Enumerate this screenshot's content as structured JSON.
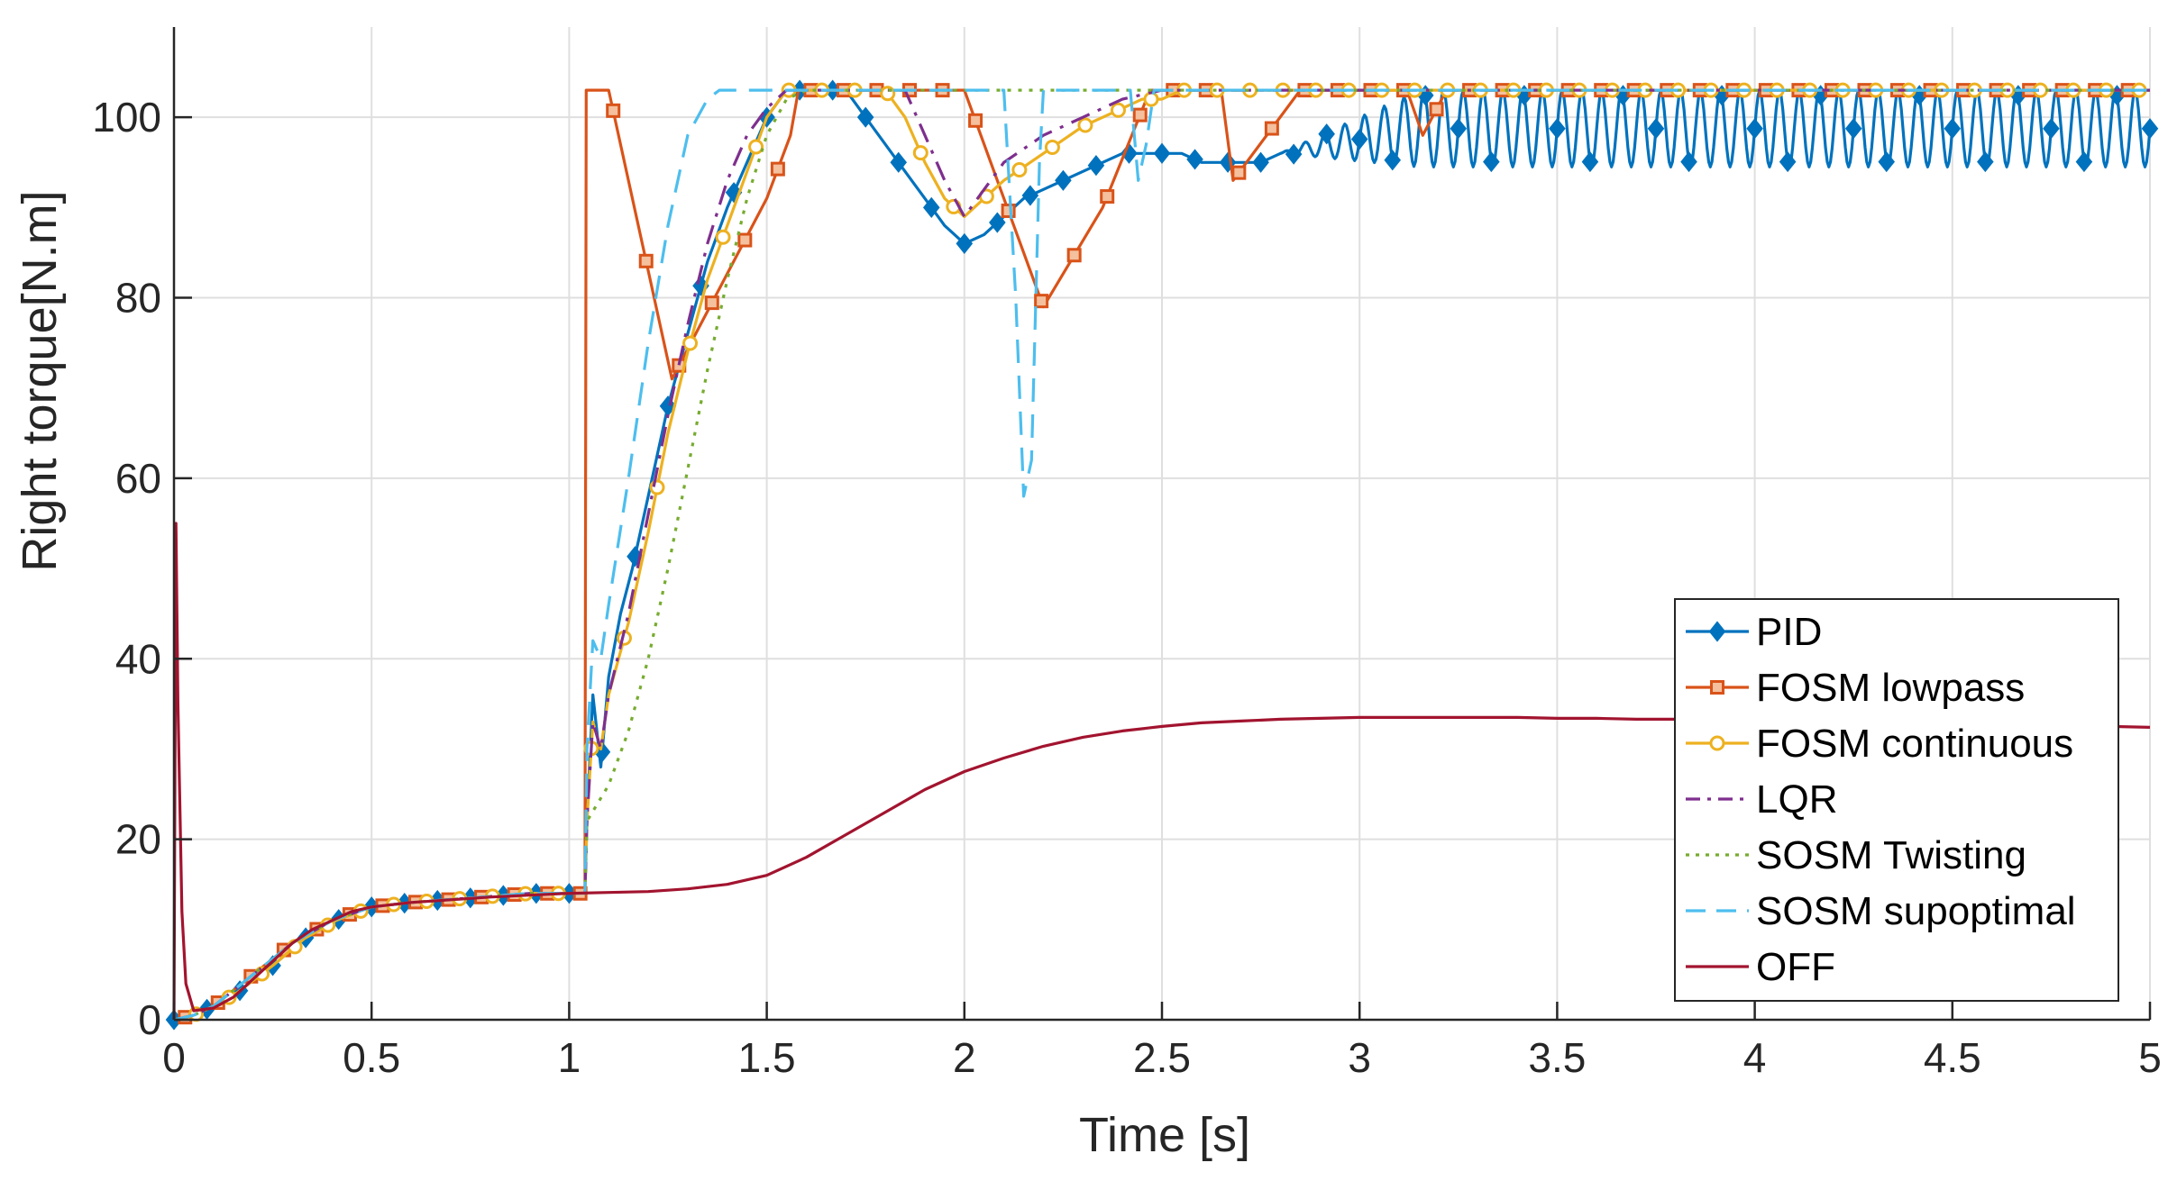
{
  "chart_data": {
    "type": "line",
    "title": "",
    "xlabel": "Time [s]",
    "ylabel": "Right torque[N.m]",
    "xlim": [
      0,
      5
    ],
    "ylim": [
      0,
      110
    ],
    "xticks": [
      0,
      0.5,
      1,
      1.5,
      2,
      2.5,
      3,
      3.5,
      4,
      4.5,
      5
    ],
    "xtick_labels": [
      "0",
      "0.5",
      "1",
      "1.5",
      "2",
      "2.5",
      "3",
      "3.5",
      "4",
      "4.5",
      "5"
    ],
    "yticks": [
      0,
      20,
      40,
      60,
      80,
      100
    ],
    "ytick_labels": [
      "0",
      "20",
      "40",
      "60",
      "80",
      "100"
    ],
    "grid": true,
    "legend_position": "lower-right",
    "series": [
      {
        "name": "PID",
        "color": "#0072BD",
        "dash": "solid",
        "marker": "diamond",
        "x": [
          0,
          0.05,
          0.1,
          0.16,
          0.25,
          0.33,
          0.41,
          0.5,
          0.6,
          0.75,
          0.9,
          1.0,
          1.04,
          1.045,
          1.06,
          1.08,
          1.1,
          1.13,
          1.16,
          1.2,
          1.25,
          1.3,
          1.35,
          1.4,
          1.45,
          1.5,
          1.55,
          1.6,
          1.65,
          1.7,
          1.75,
          1.8,
          1.85,
          1.9,
          1.95,
          2.0,
          2.05,
          2.1,
          2.15,
          2.2,
          2.25,
          2.3,
          2.35,
          2.4,
          2.45,
          2.5,
          2.55,
          2.6,
          2.65,
          2.7,
          2.75,
          2.8
        ],
        "y": [
          0,
          0.5,
          1.5,
          3,
          6,
          9,
          11,
          12.5,
          13,
          13.5,
          14,
          14,
          14,
          22,
          36,
          28,
          38,
          45,
          50,
          58,
          68,
          76,
          84,
          90,
          95,
          100,
          103,
          103,
          103,
          103,
          100,
          97,
          94,
          91,
          88,
          86,
          87,
          89,
          91,
          92,
          93,
          94,
          95,
          96,
          96,
          96,
          96,
          95,
          95,
          95,
          95,
          96
        ],
        "oscillation": {
          "x_start": 2.8,
          "x_end": 5.0,
          "period": 0.05,
          "min": 94.5,
          "max": 103
        }
      },
      {
        "name": "FOSM lowpass",
        "color": "#D95319",
        "dash": "solid",
        "marker": "square",
        "x": [
          0,
          0.05,
          0.1,
          0.2,
          0.3,
          0.4,
          0.5,
          0.6,
          0.75,
          0.9,
          1.0,
          1.04,
          1.043,
          1.05,
          1.1,
          1.26,
          1.5,
          1.56,
          1.58,
          1.85,
          2.0,
          2.2,
          2.35,
          2.47,
          2.55,
          2.6,
          2.65,
          2.68,
          2.85,
          3.0,
          3.12,
          3.16,
          3.22,
          5.0
        ],
        "y": [
          0,
          0.5,
          1.5,
          5,
          8.5,
          11,
          12.5,
          13,
          13.5,
          14,
          14,
          14,
          103,
          103,
          103,
          71,
          91,
          98,
          103,
          103,
          103,
          79,
          90,
          103,
          103,
          103,
          103,
          93,
          103,
          103,
          103,
          98,
          103,
          103
        ]
      },
      {
        "name": "FOSM continuous",
        "color": "#EDB120",
        "dash": "solid",
        "marker": "circle",
        "x": [
          0,
          0.05,
          0.1,
          0.16,
          0.25,
          0.33,
          0.41,
          0.5,
          0.6,
          0.75,
          0.9,
          1.0,
          1.04,
          1.045,
          1.06,
          1.08,
          1.1,
          1.15,
          1.2,
          1.25,
          1.3,
          1.35,
          1.4,
          1.45,
          1.5,
          1.55,
          1.6,
          1.65,
          1.7,
          1.75,
          1.8,
          1.85,
          1.9,
          1.95,
          2.0,
          2.05,
          2.1,
          2.2,
          2.3,
          2.4,
          2.45,
          2.5,
          2.55,
          2.6,
          2.65,
          5.0
        ],
        "y": [
          0,
          0.5,
          1.5,
          3,
          6,
          9,
          11,
          12.5,
          13,
          13.5,
          14,
          14,
          14,
          22,
          33,
          30,
          36,
          44,
          54,
          65,
          74,
          82,
          88,
          94,
          100,
          103,
          103,
          103,
          103,
          103,
          103,
          100,
          95,
          91,
          89,
          91,
          93,
          96,
          99,
          101,
          102,
          102,
          103,
          103,
          103,
          103
        ]
      },
      {
        "name": "LQR",
        "color": "#7E2F8E",
        "dash": "dashdot",
        "marker": "none",
        "x": [
          0,
          0.05,
          0.1,
          0.2,
          0.3,
          0.4,
          0.5,
          0.6,
          0.75,
          0.9,
          1.0,
          1.04,
          1.045,
          1.06,
          1.08,
          1.1,
          1.15,
          1.2,
          1.25,
          1.3,
          1.35,
          1.4,
          1.45,
          1.5,
          1.55,
          1.6,
          1.85,
          1.9,
          1.95,
          2.0,
          2.05,
          2.1,
          2.2,
          2.3,
          2.4,
          2.5,
          2.55,
          2.6,
          5.0
        ],
        "y": [
          0,
          0.5,
          1.5,
          5,
          8.5,
          11,
          12.5,
          13,
          13.5,
          14,
          14,
          14,
          22,
          33,
          30,
          36,
          45,
          56,
          67,
          77,
          86,
          93,
          98,
          101,
          103,
          103,
          103,
          98,
          93,
          89,
          92,
          95,
          98,
          100,
          102,
          103,
          103,
          103,
          103
        ]
      },
      {
        "name": "SOSM Twisting",
        "color": "#77AC30",
        "dash": "dotted",
        "marker": "none",
        "x": [
          0,
          0.05,
          0.1,
          0.2,
          0.3,
          0.4,
          0.5,
          0.6,
          0.75,
          0.9,
          1.0,
          1.04,
          1.045,
          1.1,
          1.15,
          1.2,
          1.25,
          1.3,
          1.35,
          1.4,
          1.45,
          1.5,
          1.55,
          1.6,
          5.0
        ],
        "y": [
          0,
          0.5,
          1.5,
          5,
          8.5,
          11,
          12.5,
          13,
          13.5,
          14,
          14,
          14,
          22,
          26,
          32,
          40,
          50,
          61,
          72,
          82,
          91,
          98,
          102,
          103,
          103
        ]
      },
      {
        "name": "SOSM supoptimal",
        "color": "#4DBEEE",
        "dash": "dashed",
        "marker": "none",
        "x": [
          0,
          0.05,
          0.1,
          0.2,
          0.3,
          0.4,
          0.5,
          0.6,
          0.75,
          0.9,
          1.0,
          1.04,
          1.045,
          1.06,
          1.08,
          1.1,
          1.15,
          1.2,
          1.25,
          1.3,
          1.35,
          1.38,
          2.1,
          2.13,
          2.15,
          2.17,
          2.19,
          2.2,
          2.42,
          2.44,
          2.46,
          2.48,
          5.0
        ],
        "y": [
          0,
          0.5,
          1.5,
          5,
          8.5,
          11,
          12.5,
          13,
          13.5,
          14,
          14,
          14,
          30,
          42,
          40,
          46,
          60,
          75,
          88,
          98,
          102,
          103,
          103,
          80,
          58,
          62,
          95,
          103,
          103,
          93,
          97,
          103,
          103
        ]
      },
      {
        "name": "OFF",
        "color": "#A2142F",
        "dash": "solid",
        "marker": "none",
        "x": [
          0,
          0.005,
          0.01,
          0.02,
          0.03,
          0.05,
          0.1,
          0.15,
          0.2,
          0.25,
          0.3,
          0.35,
          0.4,
          0.45,
          0.5,
          0.6,
          0.7,
          0.8,
          0.9,
          1.0,
          1.1,
          1.2,
          1.3,
          1.4,
          1.5,
          1.6,
          1.7,
          1.8,
          1.9,
          2.0,
          2.1,
          2.2,
          2.3,
          2.4,
          2.5,
          2.6,
          2.7,
          2.8,
          2.9,
          3.0,
          3.1,
          3.2,
          3.3,
          3.4,
          3.5,
          3.6,
          3.7,
          3.8,
          3.9,
          4.0,
          4.1,
          4.2,
          4.3,
          4.4,
          4.5,
          4.6,
          4.7,
          4.8,
          4.9,
          5.0
        ],
        "y": [
          0,
          55,
          35,
          12,
          4,
          1,
          1.3,
          2.5,
          4.5,
          6.5,
          8.5,
          10,
          11,
          12,
          12.5,
          13,
          13.3,
          13.6,
          13.8,
          14,
          14.1,
          14.2,
          14.5,
          15,
          16,
          18,
          20.5,
          23,
          25.5,
          27.5,
          29,
          30.3,
          31.3,
          32,
          32.5,
          32.9,
          33.1,
          33.3,
          33.4,
          33.5,
          33.5,
          33.5,
          33.5,
          33.5,
          33.4,
          33.4,
          33.3,
          33.3,
          33.2,
          33.2,
          33.1,
          33.0,
          33.0,
          32.9,
          32.8,
          32.8,
          32.7,
          32.6,
          32.5,
          32.4
        ]
      }
    ]
  }
}
